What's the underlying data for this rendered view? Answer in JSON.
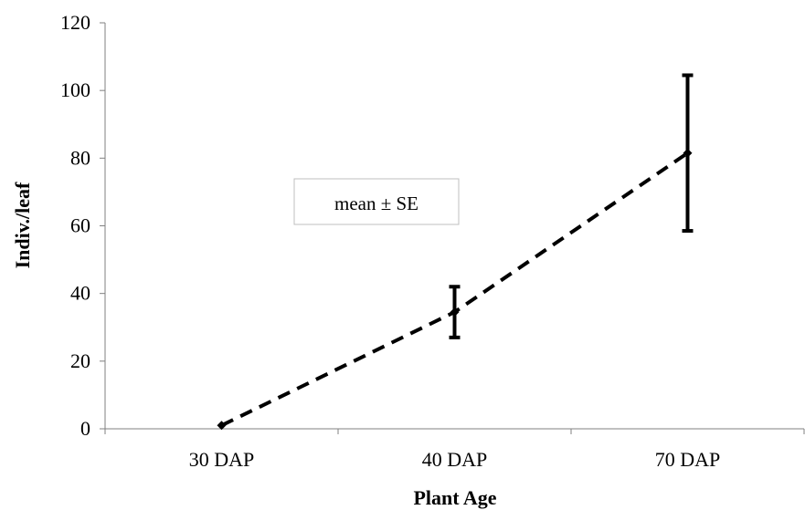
{
  "chart_data": {
    "type": "line",
    "categories": [
      "30 DAP",
      "40 DAP",
      "70 DAP"
    ],
    "series": [
      {
        "values": [
          1,
          34.5,
          81.5
        ],
        "error": [
          0.5,
          7.5,
          23
        ],
        "color": "#000000",
        "line_style": "dashed",
        "marker": "diamond"
      }
    ],
    "xlabel": "Plant Age",
    "ylabel": "Indiv./leaf",
    "ylim": [
      0,
      120
    ],
    "yticks": [
      0,
      20,
      40,
      60,
      80,
      100,
      120
    ],
    "grid": false,
    "legend_text": "mean ± SE"
  }
}
